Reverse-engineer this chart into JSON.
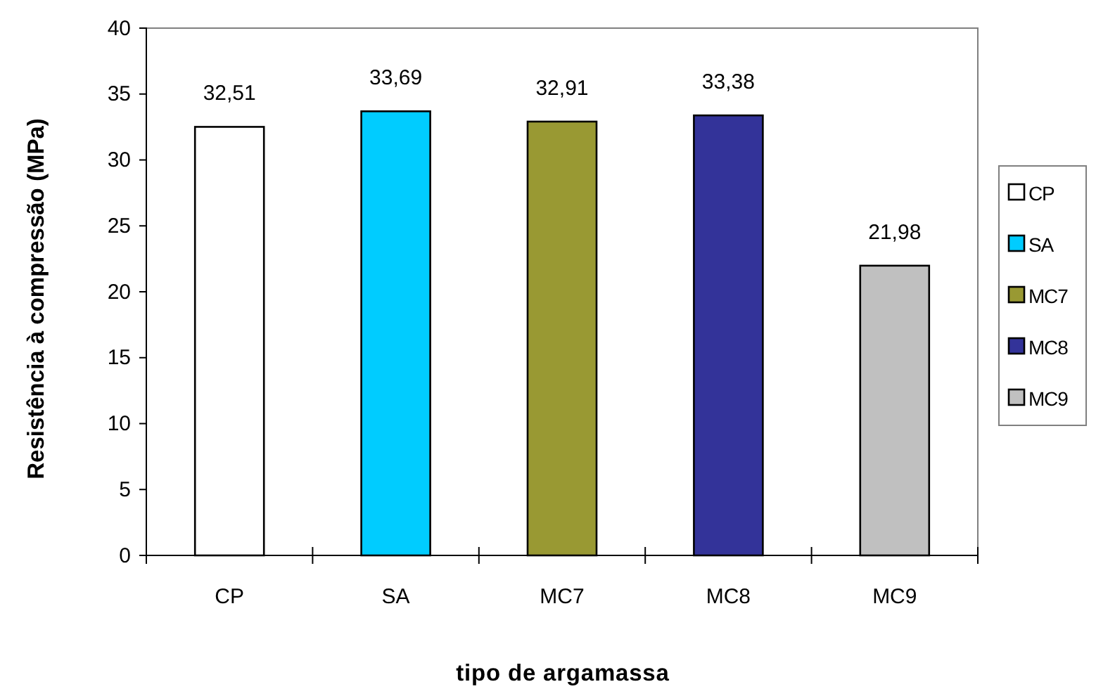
{
  "chart_data": {
    "type": "bar",
    "xlabel": "tipo de argamassa",
    "ylabel": "Resistência à compressão (MPa)",
    "categories": [
      "CP",
      "SA",
      "MC7",
      "MC8",
      "MC9"
    ],
    "series": [
      {
        "name": "CP",
        "color": "#ffffff",
        "values": [
          32.51,
          null,
          null,
          null,
          null
        ],
        "value_labels": [
          "32,51",
          null,
          null,
          null,
          null
        ]
      },
      {
        "name": "SA",
        "color": "#00ccff",
        "values": [
          null,
          33.69,
          null,
          null,
          null
        ],
        "value_labels": [
          null,
          "33,69",
          null,
          null,
          null
        ]
      },
      {
        "name": "MC7",
        "color": "#999933",
        "values": [
          null,
          null,
          32.91,
          null,
          null
        ],
        "value_labels": [
          null,
          null,
          "32,91",
          null,
          null
        ]
      },
      {
        "name": "MC8",
        "color": "#333399",
        "values": [
          null,
          null,
          null,
          33.38,
          null
        ],
        "value_labels": [
          null,
          null,
          null,
          "33,38",
          null
        ]
      },
      {
        "name": "MC9",
        "color": "#c0c0c0",
        "values": [
          null,
          null,
          null,
          null,
          21.98
        ],
        "value_labels": [
          null,
          null,
          null,
          null,
          "21,98"
        ]
      }
    ],
    "ylim": [
      0,
      40
    ],
    "yticks": [
      0,
      5,
      10,
      15,
      20,
      25,
      30,
      35,
      40
    ],
    "grid": false,
    "legend": "right"
  }
}
